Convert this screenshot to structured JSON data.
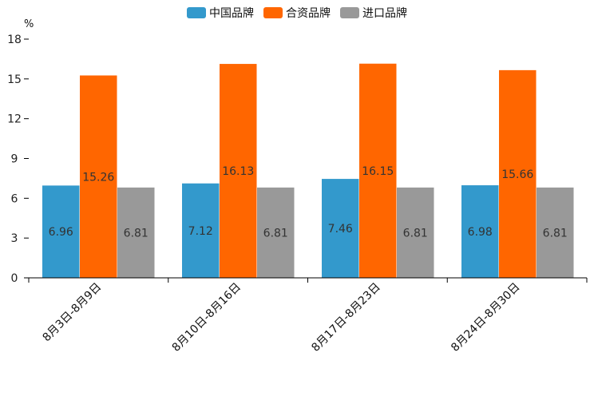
{
  "chart_data": {
    "type": "bar",
    "unit": "%",
    "categories": [
      "8月3日-8月9日",
      "8月10日-8月16日",
      "8月17日-8月23日",
      "8月24日-8月30日"
    ],
    "series": [
      {
        "name": "中国品牌",
        "color": "#3399cc",
        "values": [
          6.96,
          7.12,
          7.46,
          6.98
        ],
        "labels": [
          "6.96",
          "7.12",
          "7.46",
          "6.98"
        ]
      },
      {
        "name": "合资品牌",
        "color": "#ff6600",
        "values": [
          15.26,
          16.13,
          16.15,
          15.66
        ],
        "labels": [
          "15.26",
          "16.13",
          "16.15",
          "15.66"
        ]
      },
      {
        "name": "进口品牌",
        "color": "#999999",
        "values": [
          6.81,
          6.81,
          6.81,
          6.81
        ],
        "labels": [
          "6.81",
          "6.81",
          "6.81",
          "6.81"
        ]
      }
    ],
    "ylim": [
      0,
      18
    ],
    "yticks": [
      0,
      3,
      6,
      9,
      12,
      15,
      18
    ],
    "legend_position": "top-center",
    "grid": false
  }
}
